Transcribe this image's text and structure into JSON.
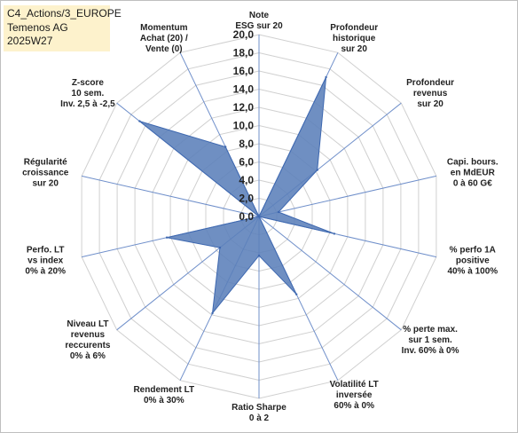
{
  "info": {
    "line1": "C4_Actions/3_EUROPE",
    "line2": "Temenos AG",
    "line3": "2025W27"
  },
  "chart_data": {
    "type": "radar",
    "rmax": 20,
    "ticks": [
      "0,0",
      "2,0",
      "4,0",
      "6,0",
      "8,0",
      "10,0",
      "12,0",
      "14,0",
      "16,0",
      "18,0",
      "20,0"
    ],
    "axes": [
      {
        "lines": [
          "Note",
          "ESG sur 20"
        ],
        "value": 0
      },
      {
        "lines": [
          "Profondeur",
          "historique",
          "sur 20"
        ],
        "value": 17
      },
      {
        "lines": [
          "Profondeur",
          "revenus",
          "sur 20"
        ],
        "value": 8.2
      },
      {
        "lines": [
          "Capi. bours.",
          "en MdEUR",
          "0 à 60 G€"
        ],
        "value": 2.2
      },
      {
        "lines": [
          "% perfo 1A",
          "positive",
          "40% à 100%"
        ],
        "value": 8.5
      },
      {
        "lines": [
          "% perte max.",
          "sur 1 sem.",
          "Inv. 60% à 0%"
        ],
        "value": 0
      },
      {
        "lines": [
          "Volatilité LT",
          "inversée",
          "60% à 0%"
        ],
        "value": 9.5
      },
      {
        "lines": [
          "Ratio Sharpe",
          "0 à 2"
        ],
        "value": 4.3
      },
      {
        "lines": [
          "Rendement LT",
          "0% à 30%"
        ],
        "value": 11.8
      },
      {
        "lines": [
          "Niveau LT",
          "revenus",
          "reccurents",
          "0% à 6%"
        ],
        "value": 5.5
      },
      {
        "lines": [
          "Perfo. LT",
          "vs index",
          "0% à 20%"
        ],
        "value": 10.4
      },
      {
        "lines": [
          "Régularité",
          "croissance",
          "sur 20"
        ],
        "value": 0
      },
      {
        "lines": [
          "Z-score",
          "10 sem.",
          "Inv. 2,5 à -2,5"
        ],
        "value": 16.8
      },
      {
        "lines": [
          "Momentum",
          "Achat (20) /",
          "Vente (0)"
        ],
        "value": 8.5
      }
    ],
    "colors": {
      "fill": "#5b7fba",
      "stroke": "#3e68b0",
      "grid": "#d0d0d0",
      "spoke": "#6f8fca"
    }
  }
}
